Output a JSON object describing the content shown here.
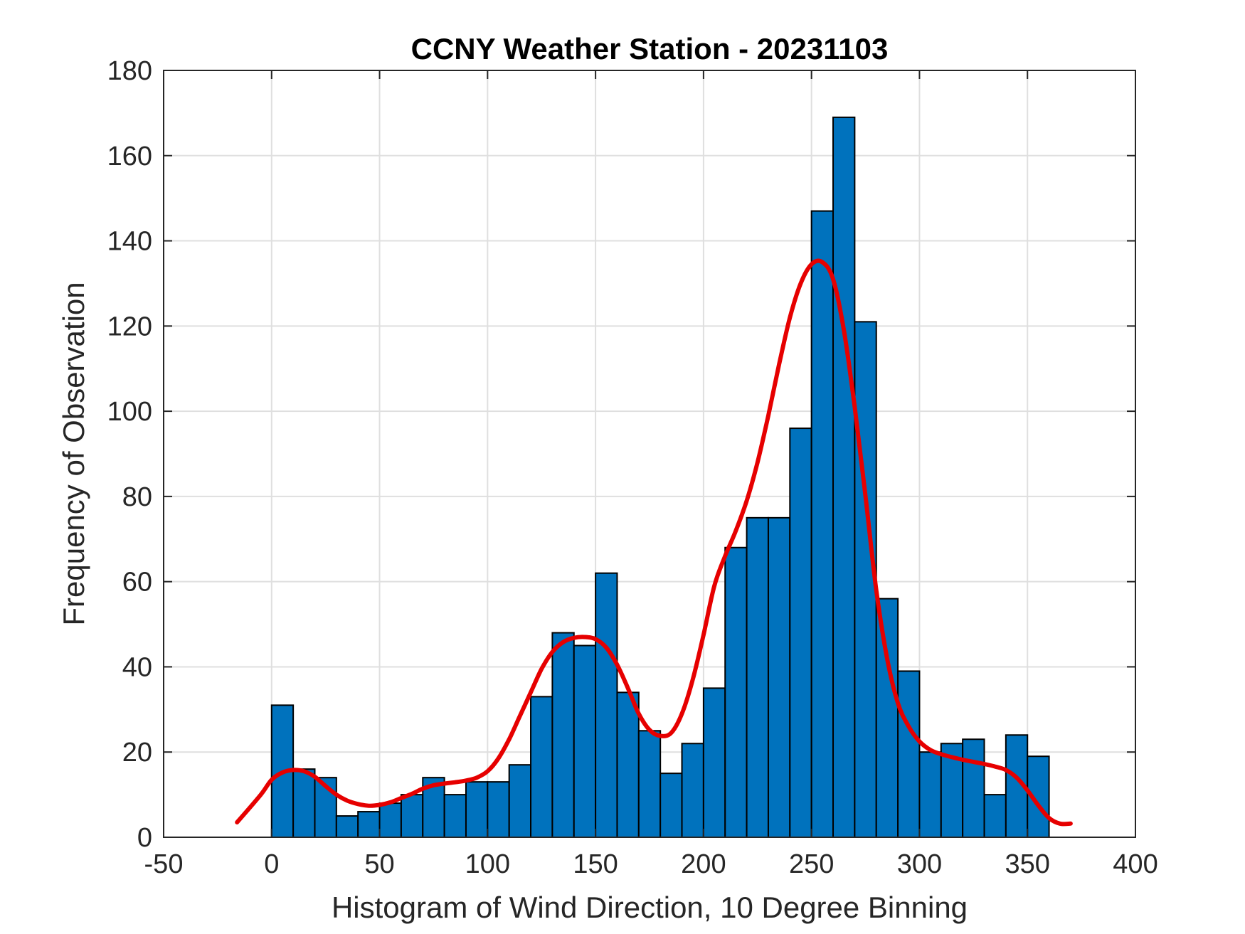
{
  "chart_data": {
    "type": "bar",
    "title": "CCNY Weather Station - 20231103",
    "xlabel": "Histogram of Wind Direction, 10 Degree Binning",
    "ylabel": "Frequency of Observation",
    "xlim": [
      -50,
      400
    ],
    "ylim": [
      0,
      180
    ],
    "xticks": [
      -50,
      0,
      50,
      100,
      150,
      200,
      250,
      300,
      350,
      400
    ],
    "yticks": [
      0,
      20,
      40,
      60,
      80,
      100,
      120,
      140,
      160,
      180
    ],
    "grid": true,
    "bin_width": 10,
    "bin_edges_start": 0,
    "values": [
      31,
      16,
      14,
      5,
      6,
      8,
      10,
      14,
      10,
      13,
      13,
      17,
      33,
      48,
      45,
      62,
      34,
      25,
      15,
      22,
      35,
      68,
      75,
      75,
      96,
      147,
      169,
      121,
      56,
      39,
      20,
      22,
      23,
      10,
      24,
      19
    ],
    "bar_color": "#0072BD",
    "curve_color": "#E60000",
    "fit_curve": {
      "x": [
        -16,
        -5,
        0,
        5,
        10,
        15,
        20,
        25,
        30,
        35,
        40,
        45,
        50,
        55,
        60,
        65,
        70,
        75,
        80,
        85,
        90,
        95,
        100,
        105,
        110,
        115,
        120,
        125,
        130,
        135,
        140,
        145,
        150,
        155,
        160,
        165,
        170,
        175,
        180,
        185,
        190,
        195,
        200,
        205,
        210,
        215,
        220,
        225,
        230,
        235,
        240,
        245,
        250,
        255,
        260,
        265,
        270,
        275,
        280,
        285,
        290,
        295,
        300,
        305,
        310,
        315,
        320,
        325,
        330,
        335,
        340,
        345,
        350,
        355,
        360,
        365,
        370
      ],
      "y": [
        3.5,
        10,
        13.5,
        15.2,
        15.8,
        15.5,
        14.2,
        12,
        10,
        8.6,
        7.8,
        7.4,
        7.6,
        8.2,
        9.2,
        10.2,
        11.4,
        12.2,
        12.6,
        12.9,
        13.3,
        14.0,
        15.5,
        18.5,
        23,
        28.5,
        34,
        39.5,
        43.5,
        45.8,
        46.8,
        47.0,
        46.5,
        44.5,
        40.5,
        35,
        29,
        25.2,
        23.8,
        24.5,
        29,
        37,
        47.5,
        59,
        66,
        72,
        79,
        88,
        99,
        111,
        122,
        130,
        134.5,
        135,
        131,
        119,
        101,
        80,
        58,
        42,
        31.5,
        26,
        22.5,
        20.5,
        19.5,
        18.8,
        18.2,
        17.7,
        17.2,
        16.6,
        15.8,
        14,
        11,
        7.5,
        4.5,
        3.2,
        3.2
      ]
    }
  }
}
